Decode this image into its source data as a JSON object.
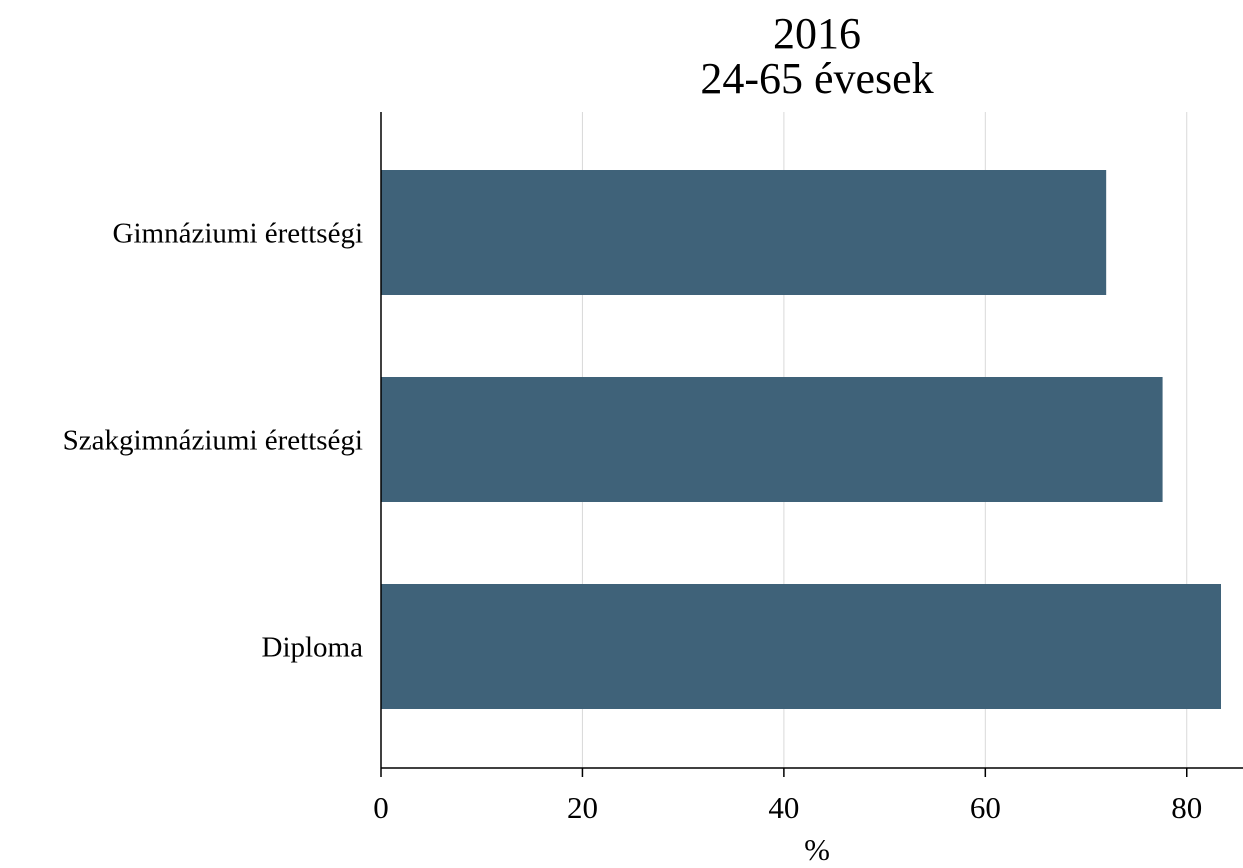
{
  "chart_data": {
    "type": "bar",
    "orientation": "horizontal",
    "title_lines": [
      "2016",
      "24-65 évesek"
    ],
    "categories": [
      "Gimnáziumi érettségi",
      "Szakgimnáziumi érettségi",
      "Diploma"
    ],
    "values": [
      72,
      77.6,
      83.4
    ],
    "xlabel": "%",
    "ylabel": "",
    "xlim": [
      0,
      85.5
    ],
    "xticks": [
      "0",
      "20",
      "40",
      "60",
      "80"
    ],
    "grid": true,
    "legend": "none",
    "colors": {
      "bar": "#3f6279",
      "grid": "#d9d9d9",
      "axis": "#000000"
    }
  }
}
